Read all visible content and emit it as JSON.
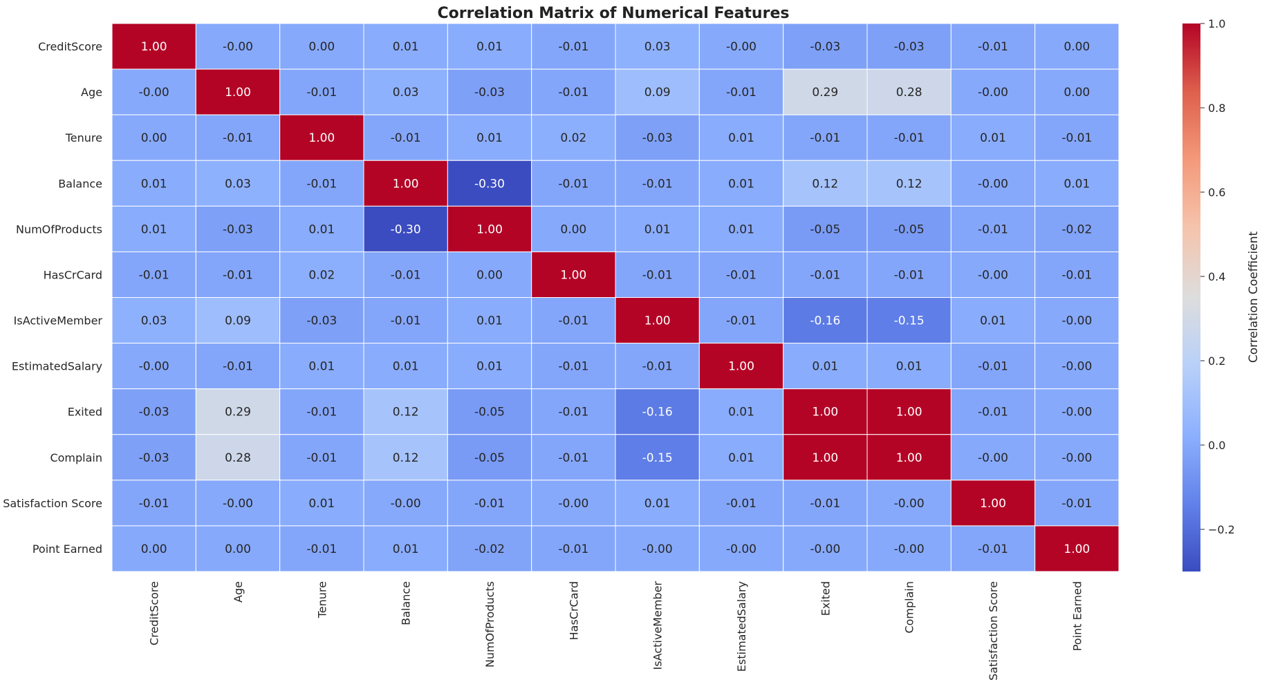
{
  "chart_data": {
    "type": "heatmap",
    "title": "Correlation Matrix of Numerical Features",
    "xlabel": "",
    "ylabel": "",
    "rows": [
      "CreditScore",
      "Age",
      "Tenure",
      "Balance",
      "NumOfProducts",
      "HasCrCard",
      "IsActiveMember",
      "EstimatedSalary",
      "Exited",
      "Complain",
      "Satisfaction Score",
      "Point Earned"
    ],
    "columns": [
      "CreditScore",
      "Age",
      "Tenure",
      "Balance",
      "NumOfProducts",
      "HasCrCard",
      "IsActiveMember",
      "EstimatedSalary",
      "Exited",
      "Complain",
      "Satisfaction Score",
      "Point Earned"
    ],
    "values": [
      [
        1.0,
        -0.0,
        0.0,
        0.01,
        0.01,
        -0.01,
        0.03,
        -0.0,
        -0.03,
        -0.03,
        -0.01,
        0.0
      ],
      [
        -0.0,
        1.0,
        -0.01,
        0.03,
        -0.03,
        -0.01,
        0.09,
        -0.01,
        0.29,
        0.28,
        -0.0,
        0.0
      ],
      [
        0.0,
        -0.01,
        1.0,
        -0.01,
        0.01,
        0.02,
        -0.03,
        0.01,
        -0.01,
        -0.01,
        0.01,
        -0.01
      ],
      [
        0.01,
        0.03,
        -0.01,
        1.0,
        -0.3,
        -0.01,
        -0.01,
        0.01,
        0.12,
        0.12,
        -0.0,
        0.01
      ],
      [
        0.01,
        -0.03,
        0.01,
        -0.3,
        1.0,
        0.0,
        0.01,
        0.01,
        -0.05,
        -0.05,
        -0.01,
        -0.02
      ],
      [
        -0.01,
        -0.01,
        0.02,
        -0.01,
        0.0,
        1.0,
        -0.01,
        -0.01,
        -0.01,
        -0.01,
        -0.0,
        -0.01
      ],
      [
        0.03,
        0.09,
        -0.03,
        -0.01,
        0.01,
        -0.01,
        1.0,
        -0.01,
        -0.16,
        -0.15,
        0.01,
        -0.0
      ],
      [
        -0.0,
        -0.01,
        0.01,
        0.01,
        0.01,
        -0.01,
        -0.01,
        1.0,
        0.01,
        0.01,
        -0.01,
        -0.0
      ],
      [
        -0.03,
        0.29,
        -0.01,
        0.12,
        -0.05,
        -0.01,
        -0.16,
        0.01,
        1.0,
        1.0,
        -0.01,
        -0.0
      ],
      [
        -0.03,
        0.28,
        -0.01,
        0.12,
        -0.05,
        -0.01,
        -0.15,
        0.01,
        1.0,
        1.0,
        -0.0,
        -0.0
      ],
      [
        -0.01,
        -0.0,
        0.01,
        -0.0,
        -0.01,
        -0.0,
        0.01,
        -0.01,
        -0.01,
        -0.0,
        1.0,
        -0.01
      ],
      [
        0.0,
        0.0,
        -0.01,
        0.01,
        -0.02,
        -0.01,
        -0.0,
        -0.0,
        -0.0,
        -0.0,
        -0.01,
        1.0
      ]
    ],
    "value_labels": [
      [
        "1.00",
        "-0.00",
        "0.00",
        "0.01",
        "0.01",
        "-0.01",
        "0.03",
        "-0.00",
        "-0.03",
        "-0.03",
        "-0.01",
        "0.00"
      ],
      [
        "-0.00",
        "1.00",
        "-0.01",
        "0.03",
        "-0.03",
        "-0.01",
        "0.09",
        "-0.01",
        "0.29",
        "0.28",
        "-0.00",
        "0.00"
      ],
      [
        "0.00",
        "-0.01",
        "1.00",
        "-0.01",
        "0.01",
        "0.02",
        "-0.03",
        "0.01",
        "-0.01",
        "-0.01",
        "0.01",
        "-0.01"
      ],
      [
        "0.01",
        "0.03",
        "-0.01",
        "1.00",
        "-0.30",
        "-0.01",
        "-0.01",
        "0.01",
        "0.12",
        "0.12",
        "-0.00",
        "0.01"
      ],
      [
        "0.01",
        "-0.03",
        "0.01",
        "-0.30",
        "1.00",
        "0.00",
        "0.01",
        "0.01",
        "-0.05",
        "-0.05",
        "-0.01",
        "-0.02"
      ],
      [
        "-0.01",
        "-0.01",
        "0.02",
        "-0.01",
        "0.00",
        "1.00",
        "-0.01",
        "-0.01",
        "-0.01",
        "-0.01",
        "-0.00",
        "-0.01"
      ],
      [
        "0.03",
        "0.09",
        "-0.03",
        "-0.01",
        "0.01",
        "-0.01",
        "1.00",
        "-0.01",
        "-0.16",
        "-0.15",
        "0.01",
        "-0.00"
      ],
      [
        "-0.00",
        "-0.01",
        "0.01",
        "0.01",
        "0.01",
        "-0.01",
        "-0.01",
        "1.00",
        "0.01",
        "0.01",
        "-0.01",
        "-0.00"
      ],
      [
        "-0.03",
        "0.29",
        "-0.01",
        "0.12",
        "-0.05",
        "-0.01",
        "-0.16",
        "0.01",
        "1.00",
        "1.00",
        "-0.01",
        "-0.00"
      ],
      [
        "-0.03",
        "0.28",
        "-0.01",
        "0.12",
        "-0.05",
        "-0.01",
        "-0.15",
        "0.01",
        "1.00",
        "1.00",
        "-0.00",
        "-0.00"
      ],
      [
        "-0.01",
        "-0.00",
        "0.01",
        "-0.00",
        "-0.01",
        "-0.00",
        "0.01",
        "-0.01",
        "-0.01",
        "-0.00",
        "1.00",
        "-0.01"
      ],
      [
        "0.00",
        "0.00",
        "-0.01",
        "0.01",
        "-0.02",
        "-0.01",
        "-0.00",
        "-0.00",
        "-0.00",
        "-0.00",
        "-0.01",
        "1.00"
      ]
    ],
    "colorbar": {
      "label": "Correlation Coefficient",
      "range": [
        -0.3,
        1.0
      ],
      "ticks": [
        -0.2,
        0.0,
        0.2,
        0.4,
        0.6,
        0.8,
        1.0
      ],
      "tick_labels": [
        "−0.2",
        "0.0",
        "0.2",
        "0.4",
        "0.6",
        "0.8",
        "1.0"
      ],
      "colormap": "coolwarm",
      "low_color": "#3b4cc0",
      "mid_color": "#dddddd",
      "high_color": "#b40426"
    },
    "grid": true,
    "legend": "colorbar-right"
  }
}
